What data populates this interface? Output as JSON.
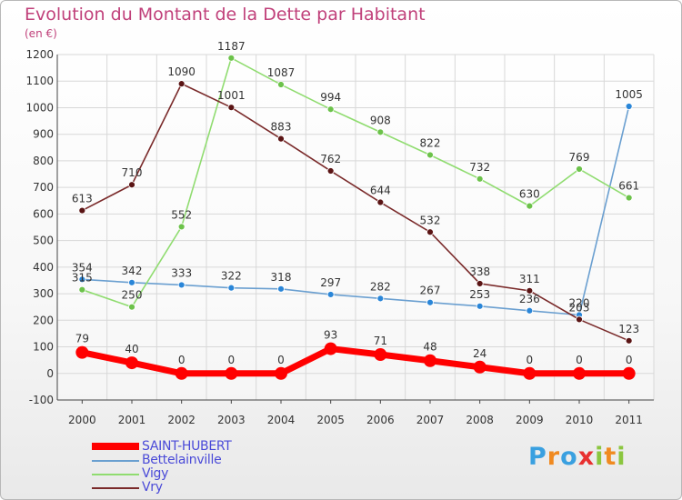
{
  "title": "Evolution du Montant de la Dette par Habitant",
  "subtitle": "(en €)",
  "brand": {
    "text": "Proxiti",
    "letters": [
      {
        "char": "P",
        "color": "#3aa0e0"
      },
      {
        "char": "r",
        "color": "#f08a20"
      },
      {
        "char": "o",
        "color": "#3aa0e0"
      },
      {
        "char": "x",
        "color": "#e83030"
      },
      {
        "char": "i",
        "color": "#8bc63f"
      },
      {
        "char": "t",
        "color": "#f08a20"
      },
      {
        "char": "i",
        "color": "#8bc63f"
      }
    ]
  },
  "chart_data": {
    "type": "line",
    "title": "Evolution du Montant de la Dette par Habitant",
    "subtitle": "(en €)",
    "xlabel": "",
    "ylabel": "",
    "x": [
      "2000",
      "2001",
      "2002",
      "2003",
      "2004",
      "2005",
      "2006",
      "2007",
      "2008",
      "2009",
      "2010",
      "2011"
    ],
    "ylim": [
      -100,
      1200
    ],
    "yticks": [
      -100,
      0,
      100,
      200,
      300,
      400,
      500,
      600,
      700,
      800,
      900,
      1000,
      1100,
      1200
    ],
    "grid": true,
    "legend": "bottom-left",
    "series": [
      {
        "name": "SAINT-HUBERT",
        "color": "#ff0000",
        "values": [
          79,
          40,
          0,
          0,
          0,
          93,
          71,
          48,
          24,
          0,
          0,
          0
        ]
      },
      {
        "name": "Bettelainville",
        "color": "#6a9fd0",
        "values": [
          354,
          342,
          333,
          322,
          318,
          297,
          282,
          267,
          253,
          236,
          220,
          1005
        ]
      },
      {
        "name": "Vigy",
        "color": "#90dc70",
        "values": [
          315,
          250,
          552,
          1187,
          1087,
          994,
          908,
          822,
          732,
          630,
          769,
          661
        ]
      },
      {
        "name": "Vry",
        "color": "#7a2a2a",
        "values": [
          613,
          710,
          1090,
          1001,
          883,
          762,
          644,
          532,
          338,
          311,
          203,
          123
        ]
      }
    ]
  }
}
